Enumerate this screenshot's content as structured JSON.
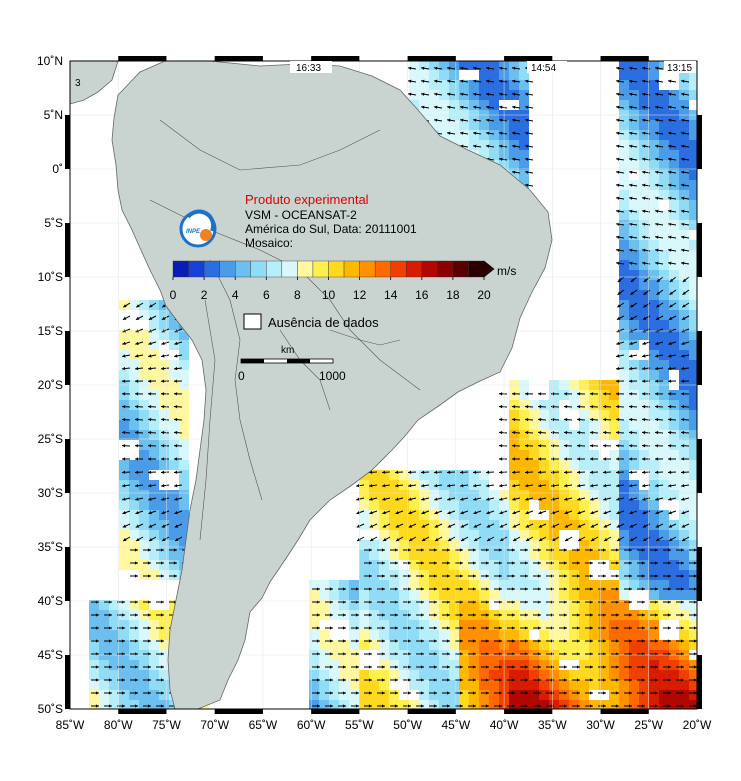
{
  "map": {
    "region_extent": {
      "lon_min": -85,
      "lon_max": -20,
      "lat_min": -50,
      "lat_max": 10
    },
    "lat_ticks": [
      {
        "value": 10,
        "label": "10˚N"
      },
      {
        "value": 5,
        "label": "5˚N"
      },
      {
        "value": 0,
        "label": "0˚"
      },
      {
        "value": -5,
        "label": "5˚S"
      },
      {
        "value": -10,
        "label": "10˚S"
      },
      {
        "value": -15,
        "label": "15˚S"
      },
      {
        "value": -20,
        "label": "20˚S"
      },
      {
        "value": -25,
        "label": "25˚S"
      },
      {
        "value": -30,
        "label": "30˚S"
      },
      {
        "value": -35,
        "label": "35˚S"
      },
      {
        "value": -40,
        "label": "40˚S"
      },
      {
        "value": -45,
        "label": "45˚S"
      },
      {
        "value": -50,
        "label": "50˚S"
      }
    ],
    "lon_ticks": [
      {
        "value": -85,
        "label": "85˚W"
      },
      {
        "value": -80,
        "label": "80˚W"
      },
      {
        "value": -75,
        "label": "75˚W"
      },
      {
        "value": -70,
        "label": "70˚W"
      },
      {
        "value": -65,
        "label": "65˚W"
      },
      {
        "value": -60,
        "label": "60˚W"
      },
      {
        "value": -55,
        "label": "55˚W"
      },
      {
        "value": -50,
        "label": "50˚W"
      },
      {
        "value": -45,
        "label": "45˚W"
      },
      {
        "value": -40,
        "label": "40˚W"
      },
      {
        "value": -35,
        "label": "35˚W"
      },
      {
        "value": -30,
        "label": "30˚W"
      },
      {
        "value": -25,
        "label": "25˚W"
      },
      {
        "value": -20,
        "label": "20˚W"
      }
    ],
    "pass_times": [
      {
        "label": "16:33"
      },
      {
        "label": "14:54"
      },
      {
        "label": "13:15"
      }
    ],
    "corner_number": "3"
  },
  "info": {
    "title": "Produto experimental",
    "line1": "VSM - OCEANSAT-2",
    "line2": "América do Sul, Data: 20111001",
    "line3": "Mosaico:",
    "logo_text": "INPE",
    "colors": {
      "title": "#e00000",
      "land": "#c9d4d0",
      "logo": "#1a73c9",
      "logo_accent": "#f08020"
    }
  },
  "colorbar": {
    "unit": "m/s",
    "ticks": [
      "0",
      "2",
      "4",
      "6",
      "8",
      "10",
      "12",
      "14",
      "16",
      "18",
      "20"
    ],
    "colors": [
      "#0a1cb4",
      "#1740d8",
      "#2a6ee0",
      "#4a9be8",
      "#6cc0f0",
      "#90dcf6",
      "#b6eefa",
      "#d8f8fc",
      "#fff8a0",
      "#fff050",
      "#ffd820",
      "#ffb800",
      "#ff9000",
      "#ff6a00",
      "#f04000",
      "#d81c00",
      "#b00800",
      "#8a0000",
      "#5a0000",
      "#2a0000"
    ]
  },
  "legend": {
    "no_data_label": "Ausência de dados"
  },
  "scalebar": {
    "unit": "km",
    "label_start": "0",
    "label_end": "1000"
  }
}
